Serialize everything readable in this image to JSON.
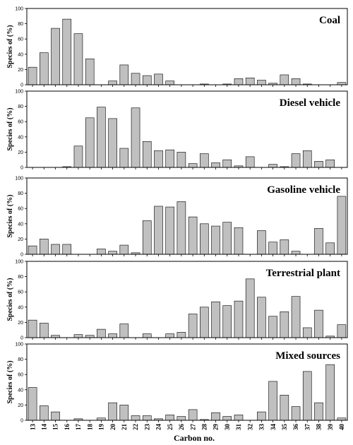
{
  "chart_data": {
    "type": "bar",
    "xlabel": "Carbon no.",
    "ylabel": "Species of (%)",
    "ylim": [
      0,
      100
    ],
    "yticks": [
      "0",
      "20",
      "40",
      "60",
      "80",
      "100"
    ],
    "categories": [
      "13",
      "14",
      "15",
      "16",
      "17",
      "18",
      "19",
      "20",
      "21",
      "22",
      "23",
      "24",
      "25",
      "26",
      "27",
      "28",
      "29",
      "30",
      "31",
      "32",
      "33",
      "34",
      "35",
      "36",
      "37",
      "38",
      "39",
      "40"
    ],
    "panels": [
      {
        "title": "Coal",
        "values": [
          23,
          42,
          74,
          86,
          67,
          34,
          0,
          5,
          26,
          15,
          12,
          14,
          5,
          0,
          0,
          1,
          0,
          1,
          8,
          9,
          6,
          2,
          13,
          8,
          1,
          0,
          0,
          3
        ]
      },
      {
        "title": "Diesel vehicle",
        "values": [
          0,
          0,
          0,
          1,
          28,
          65,
          79,
          64,
          25,
          78,
          34,
          22,
          23,
          20,
          5,
          18,
          6,
          10,
          2,
          14,
          0,
          4,
          1,
          18,
          22,
          8,
          10,
          0
        ]
      },
      {
        "title": "Gasoline vehicle",
        "values": [
          11,
          20,
          13,
          13,
          0,
          0,
          7,
          4,
          12,
          2,
          44,
          63,
          62,
          69,
          49,
          40,
          37,
          42,
          35,
          0,
          31,
          16,
          19,
          4,
          0,
          34,
          15,
          76
        ]
      },
      {
        "title": "Terrestrial plant",
        "values": [
          23,
          19,
          3,
          0,
          4,
          3,
          11,
          5,
          18,
          0,
          5,
          0,
          5,
          7,
          31,
          40,
          47,
          42,
          48,
          77,
          53,
          28,
          34,
          54,
          13,
          36,
          2,
          17
        ]
      },
      {
        "title": "Mixed sources",
        "values": [
          43,
          19,
          11,
          0,
          2,
          0,
          3,
          23,
          20,
          6,
          6,
          2,
          7,
          5,
          14,
          1,
          10,
          5,
          7,
          0,
          11,
          51,
          33,
          18,
          64,
          23,
          73,
          3
        ]
      }
    ]
  }
}
